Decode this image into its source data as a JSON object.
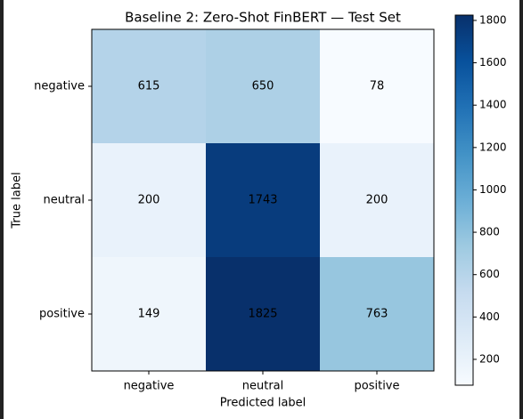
{
  "chart_data": {
    "type": "heatmap",
    "title": "Baseline 2: Zero-Shot FinBERT — Test Set",
    "x_label": "Predicted label",
    "y_label": "True label",
    "x_categories": [
      "negative",
      "neutral",
      "positive"
    ],
    "y_categories": [
      "negative",
      "neutral",
      "positive"
    ],
    "values": [
      [
        615,
        650,
        78
      ],
      [
        200,
        1743,
        200
      ],
      [
        149,
        1825,
        763
      ]
    ],
    "colormap": [
      "#f7fbff",
      "#deebf7",
      "#c6dbef",
      "#9ecae1",
      "#6baed6",
      "#4292c6",
      "#2171b5",
      "#08519c",
      "#08306b"
    ],
    "clim": [
      78,
      1825
    ],
    "cticks": [
      200,
      400,
      600,
      800,
      1000,
      1200,
      1400,
      1600,
      1800
    ]
  }
}
